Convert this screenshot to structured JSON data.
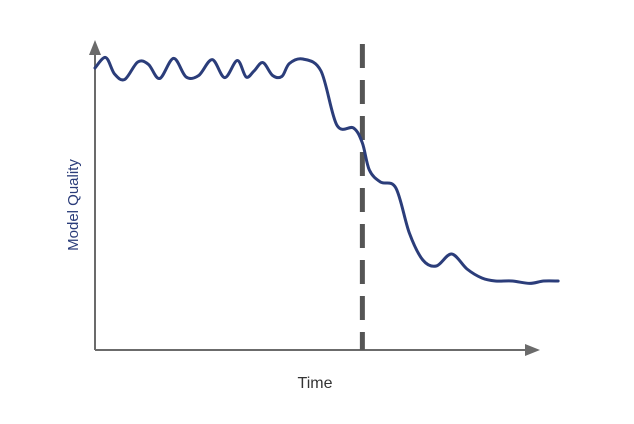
{
  "chart_data": {
    "type": "line",
    "title": "",
    "xlabel": "Time",
    "ylabel": "Model Quality",
    "xlim": [
      0,
      10
    ],
    "ylim": [
      0,
      10
    ],
    "grid": false,
    "ticks": false,
    "legend": "none",
    "annotations": [
      {
        "type": "vertical-dashed-line",
        "x": 5.75
      }
    ],
    "series": [
      {
        "color": "#2b3d7a",
        "x": [
          0,
          0.23,
          0.42,
          0.64,
          0.92,
          1.15,
          1.39,
          1.69,
          1.96,
          2.23,
          2.52,
          2.79,
          3.06,
          3.25,
          3.42,
          3.61,
          3.82,
          4.02,
          4.18,
          4.47,
          4.86,
          5.2,
          5.56,
          5.75,
          5.9,
          6.14,
          6.47,
          6.76,
          7.05,
          7.34,
          7.67,
          8.0,
          8.32,
          8.61,
          8.97,
          9.35,
          9.65,
          9.96
        ],
        "y": [
          9.4,
          9.75,
          9.2,
          9.02,
          9.6,
          9.52,
          9.05,
          9.72,
          9.1,
          9.15,
          9.68,
          9.08,
          9.65,
          9.1,
          9.3,
          9.58,
          9.15,
          9.12,
          9.55,
          9.7,
          9.3,
          7.5,
          7.4,
          6.9,
          6.0,
          5.6,
          5.4,
          3.9,
          3.0,
          2.8,
          3.2,
          2.7,
          2.4,
          2.3,
          2.3,
          2.22,
          2.3,
          2.3
        ]
      }
    ]
  },
  "colors": {
    "axis": "#6b6b6b",
    "series": "#2b3d7a",
    "marker": "#555555",
    "xlabel": "#333333",
    "ylabel": "#2b3d7a"
  }
}
